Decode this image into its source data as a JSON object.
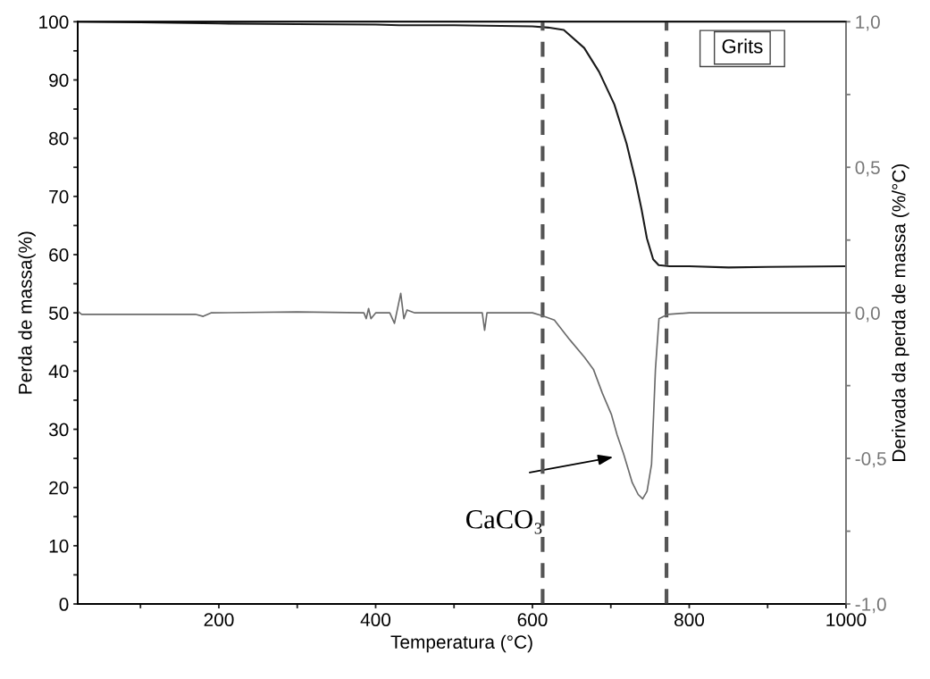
{
  "chart_data": {
    "type": "line",
    "xlabel": "Temperatura (°C)",
    "ylabel": "Perda de massa(%)",
    "y2label": "Derivada da perda de massa (%/°C)",
    "legend_title": "Grits",
    "grid": false,
    "xlim": [
      20,
      1000
    ],
    "xticks": [
      {
        "value": 100,
        "label": null
      },
      200,
      {
        "value": 300,
        "label": null
      },
      400,
      {
        "value": 500,
        "label": null
      },
      600,
      {
        "value": 700,
        "label": null
      },
      800,
      {
        "value": 900,
        "label": null
      },
      1000
    ],
    "ylim": [
      0,
      100
    ],
    "yticks": [
      0,
      {
        "value": 5,
        "label": null
      },
      10,
      {
        "value": 15,
        "label": null
      },
      20,
      {
        "value": 25,
        "label": null
      },
      30,
      {
        "value": 35,
        "label": null
      },
      40,
      {
        "value": 45,
        "label": null
      },
      50,
      {
        "value": 55,
        "label": null
      },
      60,
      {
        "value": 65,
        "label": null
      },
      70,
      {
        "value": 75,
        "label": null
      },
      80,
      {
        "value": 85,
        "label": null
      },
      90,
      {
        "value": 95,
        "label": null
      },
      100
    ],
    "y2lim": [
      -1,
      1
    ],
    "y2ticks": [
      {
        "value": -1,
        "label": "-1,0"
      },
      {
        "value": -0.75,
        "label": null
      },
      {
        "value": -0.5,
        "label": "-0,5"
      },
      {
        "value": -0.25,
        "label": null
      },
      {
        "value": 0,
        "label": "0,0"
      },
      {
        "value": 0.25,
        "label": null
      },
      {
        "value": 0.5,
        "label": "0,5"
      },
      {
        "value": 0.75,
        "label": null
      },
      {
        "value": 1,
        "label": "1,0"
      }
    ],
    "series": [
      {
        "color": "#1a1a1a",
        "x": [
          20,
          100,
          200,
          300,
          400,
          430,
          500,
          600,
          620,
          640,
          666,
          685,
          704.5,
          720,
          731,
          739,
          746,
          754,
          761,
          775,
          800,
          850,
          900,
          1000
        ],
        "values": [
          100,
          99.9,
          99.7,
          99.6,
          99.5,
          99.4,
          99.4,
          99.2,
          99.0,
          98.6,
          95.5,
          91.4,
          85.8,
          79.1,
          73,
          67.9,
          62.8,
          59.2,
          58.2,
          58.0,
          58.0,
          57.8,
          57.9,
          58.0
        ]
      },
      {
        "color": "#6b6b6b",
        "axis": "y2",
        "x": [
          20,
          25,
          40,
          170,
          180,
          190,
          300,
          385,
          388,
          391,
          394,
          400,
          418,
          424,
          432,
          436,
          440,
          450,
          530,
          536,
          539,
          542,
          550,
          600,
          613,
          628,
          647.5,
          666.5,
          677.8,
          689.2,
          700.6,
          708,
          715.9,
          721.6,
          727.3,
          734.9,
          740.6,
          746.2,
          751.9,
          754.6,
          756.9,
          761.4,
          772.8,
          800,
          900,
          1000
        ],
        "values": [
          0.005,
          -0.005,
          -0.005,
          -0.005,
          -0.012,
          0,
          0.003,
          0,
          -0.02,
          0.015,
          -0.02,
          0,
          0,
          -0.036,
          0.067,
          -0.02,
          0.01,
          0,
          0,
          0,
          -0.06,
          0,
          0,
          0,
          -0.01,
          -0.025,
          -0.092,
          -0.153,
          -0.194,
          -0.276,
          -0.348,
          -0.419,
          -0.481,
          -0.532,
          -0.583,
          -0.624,
          -0.639,
          -0.613,
          -0.521,
          -0.348,
          -0.194,
          -0.02,
          -0.005,
          0,
          0,
          0
        ]
      }
    ],
    "ref_lines": [
      {
        "axis": "x",
        "value": 613,
        "color": "#555555",
        "line_style": "dashed"
      },
      {
        "axis": "x",
        "value": 771,
        "color": "#555555",
        "line_style": "dashed"
      }
    ],
    "annotations": [
      "CaCO₃"
    ]
  }
}
